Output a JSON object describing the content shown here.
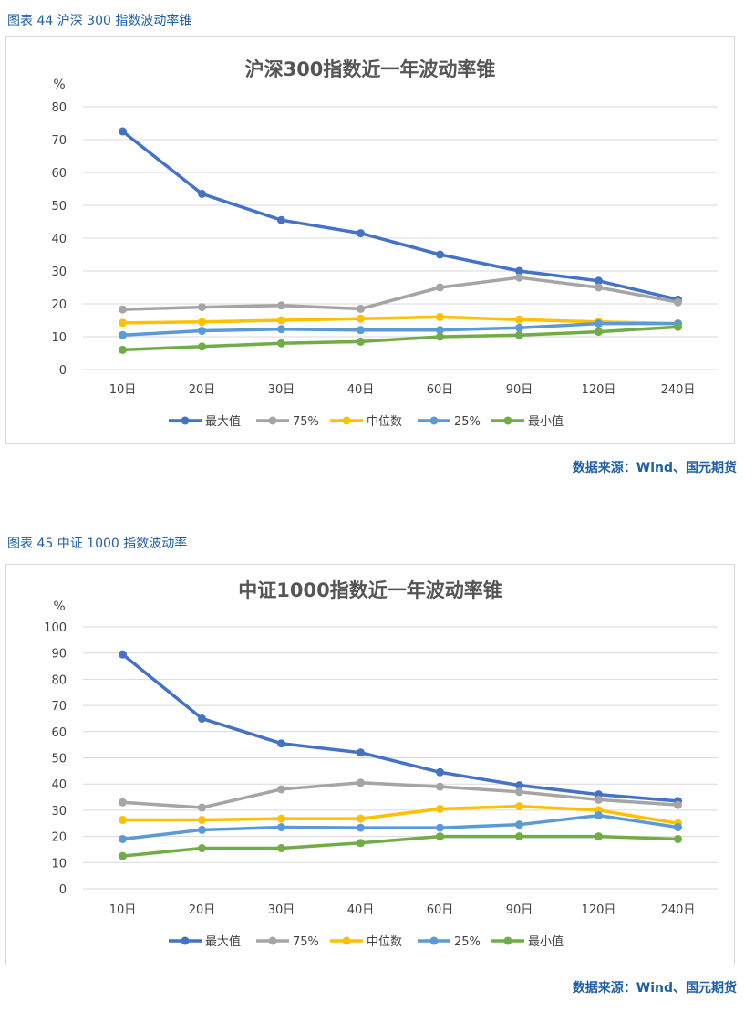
{
  "figures": [
    {
      "caption": "图表 44  沪深 300 指数波动率锥",
      "source": "数据来源：Wind、国元期货",
      "chart_data": {
        "type": "line",
        "title": "沪深300指数近一年波动率锥",
        "ylabel": "%",
        "ylim": [
          0,
          80
        ],
        "yticks": [
          0,
          10,
          20,
          30,
          40,
          50,
          60,
          70,
          80
        ],
        "categories": [
          "10日",
          "20日",
          "30日",
          "40日",
          "60日",
          "90日",
          "120日",
          "240日"
        ],
        "grid": true,
        "legend_position": "bottom",
        "series": [
          {
            "name": "最大值",
            "color": "#4472c4",
            "values": [
              72.5,
              53.5,
              45.5,
              41.5,
              35.0,
              30.0,
              27.0,
              21.3
            ]
          },
          {
            "name": "75%",
            "color": "#a5a5a5",
            "values": [
              18.3,
              19.0,
              19.5,
              18.5,
              25.0,
              28.0,
              25.0,
              20.5
            ]
          },
          {
            "name": "中位数",
            "color": "#ffc000",
            "values": [
              14.2,
              14.5,
              15.0,
              15.5,
              16.0,
              15.2,
              14.5,
              14.0
            ]
          },
          {
            "name": "25%",
            "color": "#5b9bd5",
            "values": [
              10.5,
              11.8,
              12.3,
              12.0,
              12.0,
              12.7,
              14.0,
              14.0
            ]
          },
          {
            "name": "最小值",
            "color": "#70ad47",
            "values": [
              6.0,
              7.0,
              8.0,
              8.5,
              10.0,
              10.5,
              11.5,
              13.0
            ]
          }
        ]
      }
    },
    {
      "caption": "图表 45  中证 1000 指数波动率",
      "source": "数据来源：Wind、国元期货",
      "chart_data": {
        "type": "line",
        "title": "中证1000指数近一年波动率锥",
        "ylabel": "%",
        "ylim": [
          0,
          100
        ],
        "yticks": [
          0,
          10,
          20,
          30,
          40,
          50,
          60,
          70,
          80,
          90,
          100
        ],
        "categories": [
          "10日",
          "20日",
          "30日",
          "40日",
          "60日",
          "90日",
          "120日",
          "240日"
        ],
        "grid": true,
        "legend_position": "bottom",
        "series": [
          {
            "name": "最大值",
            "color": "#4472c4",
            "values": [
              89.5,
              65.0,
              55.5,
              52.0,
              44.5,
              39.5,
              36.0,
              33.5
            ]
          },
          {
            "name": "75%",
            "color": "#a5a5a5",
            "values": [
              33.0,
              31.0,
              38.0,
              40.5,
              39.0,
              37.0,
              34.0,
              32.0
            ]
          },
          {
            "name": "中位数",
            "color": "#ffc000",
            "values": [
              26.3,
              26.3,
              26.8,
              26.8,
              30.5,
              31.5,
              30.0,
              25.0
            ]
          },
          {
            "name": "25%",
            "color": "#5b9bd5",
            "values": [
              19.0,
              22.5,
              23.5,
              23.3,
              23.3,
              24.5,
              28.0,
              23.5
            ]
          },
          {
            "name": "最小值",
            "color": "#70ad47",
            "values": [
              12.5,
              15.5,
              15.5,
              17.5,
              20.0,
              20.0,
              20.0,
              19.0
            ]
          }
        ]
      }
    }
  ]
}
